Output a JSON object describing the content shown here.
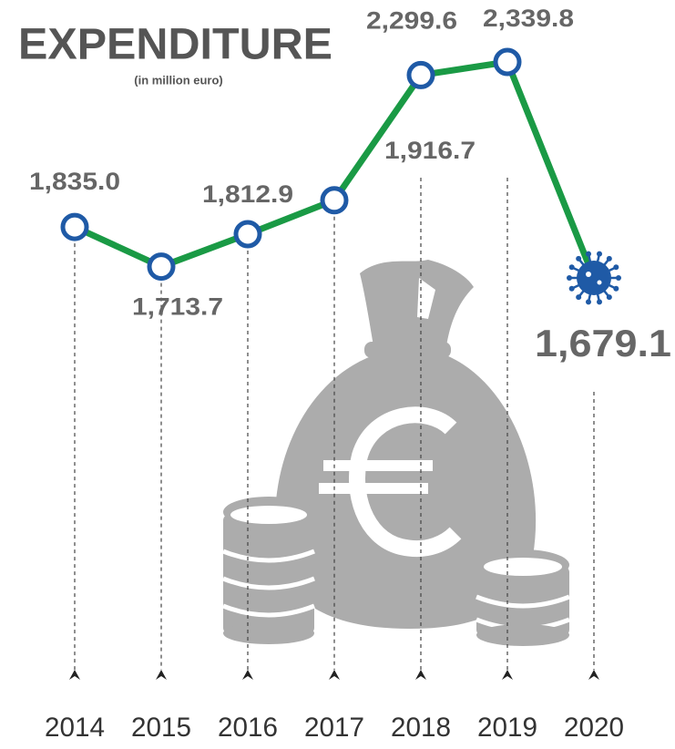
{
  "chart_data": {
    "type": "line",
    "title": "EXPENDITURE",
    "subtitle": "(in million euro)",
    "categories": [
      "2014",
      "2015",
      "2016",
      "2017",
      "2018",
      "2019",
      "2020"
    ],
    "series": [
      {
        "color": "#1a9a45",
        "values": [
          1835.0,
          1713.7,
          1812.9,
          1916.7,
          2299.6,
          2339.8,
          1679.1
        ],
        "value_labels": [
          "1,835.0",
          "1,713.7",
          "1,812.9",
          "1,916.7",
          "2,299.6",
          "2,339.8",
          "1,679.1"
        ]
      }
    ]
  }
}
